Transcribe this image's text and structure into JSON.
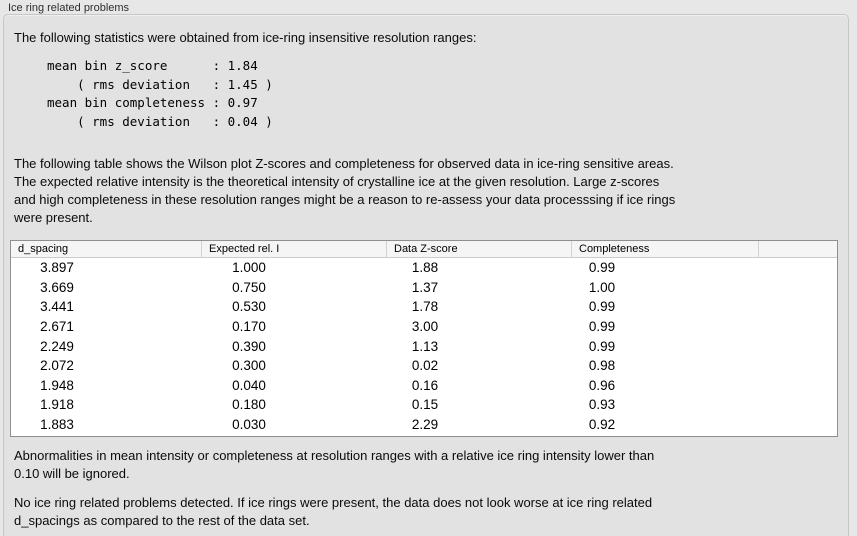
{
  "box": {
    "title": "Ice ring related problems"
  },
  "intro": "The following statistics were obtained from ice-ring insensitive resolution ranges:",
  "stats_block": "mean bin z_score      : 1.84\n    ( rms deviation   : 1.45 )\nmean bin completeness : 0.97\n    ( rms deviation   : 0.04 )",
  "stats": {
    "mean_bin_z_score": "1.84",
    "z_score_rms_deviation": "1.45",
    "mean_bin_completeness": "0.97",
    "completeness_rms_deviation": "0.04"
  },
  "table_intro": "The following table shows the Wilson plot Z-scores and completeness for observed data in ice-ring sensitive areas.\nThe expected relative intensity is the theoretical intensity of crystalline ice at the given resolution. Large z-scores\nand high completeness in these resolution ranges might be a reason to re-assess your data processsing if ice rings\nwere present.",
  "table": {
    "columns": [
      "d_spacing",
      "Expected rel. I",
      "Data Z-score",
      "Completeness"
    ],
    "rows": [
      [
        "3.897",
        "1.000",
        "1.88",
        "0.99"
      ],
      [
        "3.669",
        "0.750",
        "1.37",
        "1.00"
      ],
      [
        "3.441",
        "0.530",
        "1.78",
        "0.99"
      ],
      [
        "2.671",
        "0.170",
        "3.00",
        "0.99"
      ],
      [
        "2.249",
        "0.390",
        "1.13",
        "0.99"
      ],
      [
        "2.072",
        "0.300",
        "0.02",
        "0.98"
      ],
      [
        "1.948",
        "0.040",
        "0.16",
        "0.96"
      ],
      [
        "1.918",
        "0.180",
        "0.15",
        "0.93"
      ],
      [
        "1.883",
        "0.030",
        "2.29",
        "0.92"
      ]
    ]
  },
  "footnote": "Abnormalities in mean intensity or completeness at resolution ranges with a relative ice ring intensity lower than\n0.10 will be ignored.",
  "conclusion": "No ice ring related problems detected. If ice rings were present, the data does not look worse at ice ring related\nd_spacings as compared to the rest of the data set."
}
